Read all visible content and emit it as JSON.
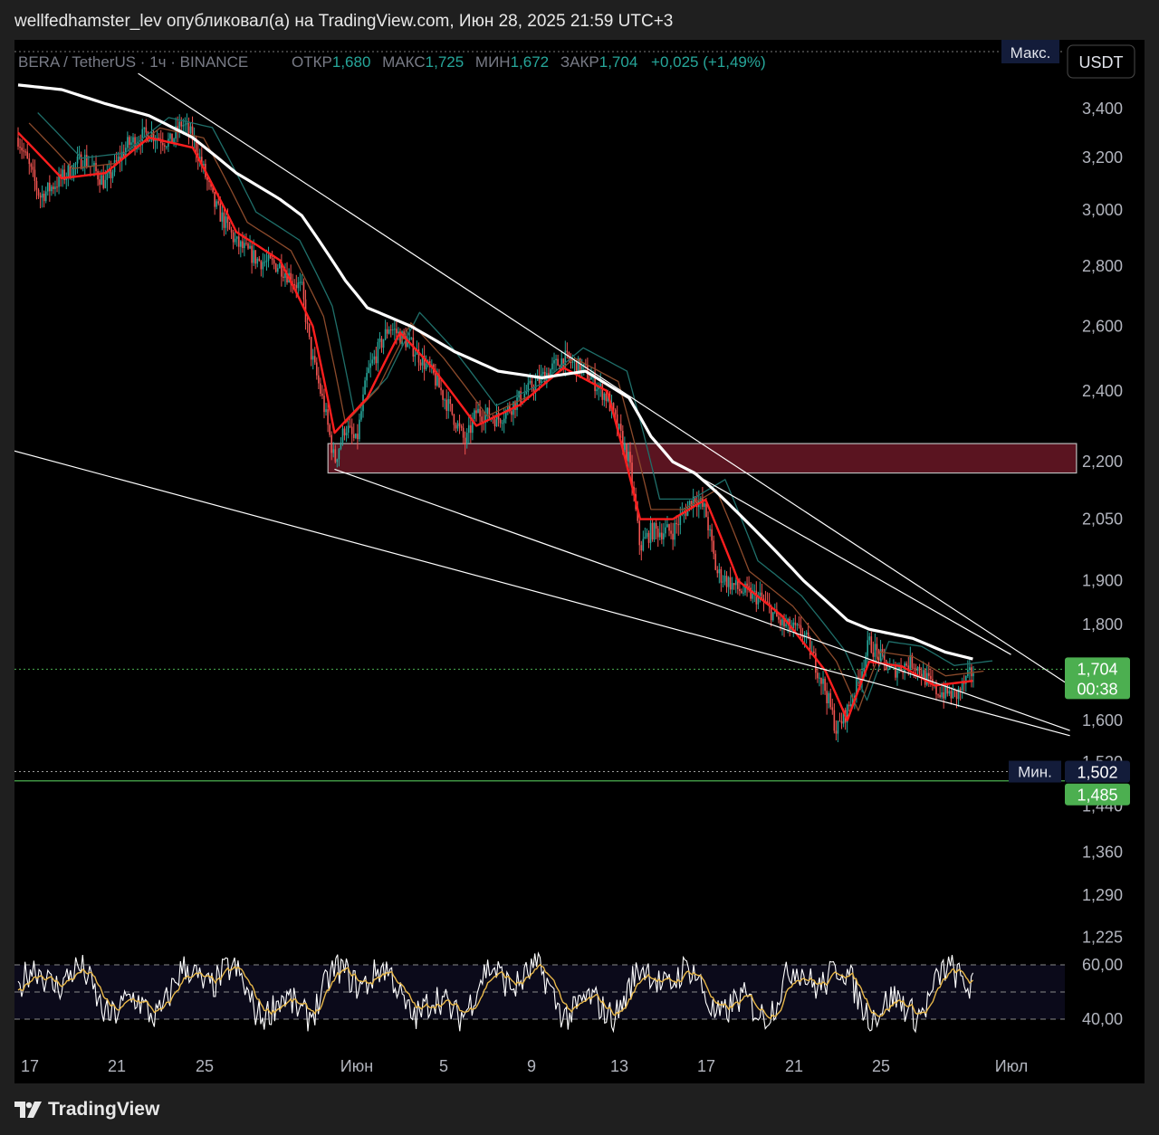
{
  "header": {
    "publish_line": "wellfedhamster_lev опубликовал(а) на TradingView.com, Июн 28, 2025 21:59 UTC+3"
  },
  "legend": {
    "symbol": "BERA / TetherUS · 1ч · BINANCE",
    "open_label": "ОТКР",
    "open_value": "1,680",
    "high_label": "МАКС",
    "high_value": "1,725",
    "low_label": "МИН",
    "low_value": "1,672",
    "close_label": "ЗАКР",
    "close_value": "1,704",
    "change": "+0,025 (+1,49%)"
  },
  "currency_button": "USDT",
  "max_label": "Макс.",
  "min_label": "Мин.",
  "min_value": "1,502",
  "current_price": "1,704",
  "countdown": "00:38",
  "green_line_price": "1,485",
  "footer": {
    "brand": "TradingView"
  },
  "colors": {
    "up": "#26a69a",
    "down": "#ef5350",
    "ema_fast": "#ff1e1e",
    "ema_mid": "#8b4a2b",
    "ema_slow": "#1f6f6a",
    "ema_long": "#ffffff",
    "zone": "#5a1420",
    "rsi": "#ffffff",
    "rsi_ma": "#e8b84a",
    "price_badge": "#4caf50",
    "dark_badge": "#131c3a"
  },
  "chart_data": {
    "type": "line",
    "price_scale": "log",
    "price_range": [
      1.22,
      3.48
    ],
    "y_ticks": [
      "3,400",
      "3,200",
      "3,000",
      "2,800",
      "2,600",
      "2,400",
      "2,200",
      "2,050",
      "1,900",
      "1,800",
      "1,600",
      "1,520",
      "1,440",
      "1,360",
      "1,290",
      "1,225"
    ],
    "x_ticks": [
      "17",
      "21",
      "25",
      "Июн",
      "5",
      "9",
      "13",
      "17",
      "21",
      "25",
      "Июл"
    ],
    "price_path": [
      [
        0,
        3.28
      ],
      [
        1,
        3.05
      ],
      [
        2,
        3.12
      ],
      [
        3,
        3.2
      ],
      [
        4,
        3.1
      ],
      [
        5,
        3.25
      ],
      [
        6,
        3.3
      ],
      [
        7,
        3.26
      ],
      [
        7.5,
        3.34
      ],
      [
        8,
        3.28
      ],
      [
        9,
        3.02
      ],
      [
        10,
        2.88
      ],
      [
        11,
        2.82
      ],
      [
        12,
        2.8
      ],
      [
        13,
        2.72
      ],
      [
        13.4,
        2.52
      ],
      [
        14,
        2.36
      ],
      [
        14.5,
        2.2
      ],
      [
        15,
        2.3
      ],
      [
        15.5,
        2.25
      ],
      [
        16,
        2.45
      ],
      [
        17,
        2.6
      ],
      [
        18,
        2.54
      ],
      [
        19,
        2.45
      ],
      [
        20,
        2.32
      ],
      [
        20.5,
        2.25
      ],
      [
        21,
        2.34
      ],
      [
        22,
        2.32
      ],
      [
        23,
        2.38
      ],
      [
        24,
        2.44
      ],
      [
        25,
        2.5
      ],
      [
        26,
        2.46
      ],
      [
        27,
        2.38
      ],
      [
        28,
        2.2
      ],
      [
        28.5,
        1.98
      ],
      [
        29,
        2.02
      ],
      [
        30,
        2.02
      ],
      [
        31,
        2.11
      ],
      [
        31.5,
        2.07
      ],
      [
        32,
        1.92
      ],
      [
        33,
        1.88
      ],
      [
        34,
        1.86
      ],
      [
        35,
        1.8
      ],
      [
        36,
        1.78
      ],
      [
        37,
        1.66
      ],
      [
        37.5,
        1.58
      ],
      [
        38,
        1.62
      ],
      [
        38.5,
        1.68
      ],
      [
        39,
        1.76
      ],
      [
        40,
        1.7
      ],
      [
        41,
        1.72
      ],
      [
        42,
        1.66
      ],
      [
        43,
        1.65
      ],
      [
        43.8,
        1.704
      ]
    ],
    "ema_fast": [
      [
        0,
        3.3
      ],
      [
        2,
        3.12
      ],
      [
        4,
        3.14
      ],
      [
        6,
        3.28
      ],
      [
        8,
        3.24
      ],
      [
        10,
        2.92
      ],
      [
        12,
        2.82
      ],
      [
        13.5,
        2.6
      ],
      [
        14.5,
        2.28
      ],
      [
        16,
        2.38
      ],
      [
        17.5,
        2.58
      ],
      [
        19,
        2.47
      ],
      [
        21,
        2.3
      ],
      [
        23,
        2.36
      ],
      [
        25,
        2.47
      ],
      [
        27,
        2.4
      ],
      [
        28.5,
        2.05
      ],
      [
        30,
        2.05
      ],
      [
        31.5,
        2.1
      ],
      [
        33,
        1.9
      ],
      [
        35,
        1.82
      ],
      [
        37,
        1.7
      ],
      [
        38,
        1.6
      ],
      [
        39,
        1.72
      ],
      [
        40.5,
        1.71
      ],
      [
        42,
        1.67
      ],
      [
        43.8,
        1.68
      ]
    ],
    "ema_long": [
      [
        0,
        3.5
      ],
      [
        2,
        3.48
      ],
      [
        4,
        3.42
      ],
      [
        6,
        3.37
      ],
      [
        8,
        3.28
      ],
      [
        10,
        3.14
      ],
      [
        12,
        3.04
      ],
      [
        13,
        2.98
      ],
      [
        15,
        2.75
      ],
      [
        16,
        2.66
      ],
      [
        18,
        2.6
      ],
      [
        20,
        2.52
      ],
      [
        22,
        2.46
      ],
      [
        24,
        2.44
      ],
      [
        26,
        2.46
      ],
      [
        28,
        2.38
      ],
      [
        29,
        2.27
      ],
      [
        30,
        2.2
      ],
      [
        31,
        2.17
      ],
      [
        32,
        2.12
      ],
      [
        34,
        2.01
      ],
      [
        36,
        1.9
      ],
      [
        38,
        1.81
      ],
      [
        39,
        1.79
      ],
      [
        41,
        1.77
      ],
      [
        42.5,
        1.74
      ],
      [
        43.8,
        1.725
      ]
    ],
    "channel_lines": [
      {
        "from": [
          -0.8,
          2.24
        ],
        "to": [
          48.2,
          1.57
        ]
      },
      {
        "from": [
          14.5,
          2.18
        ],
        "to": [
          48.2,
          1.58
        ]
      },
      {
        "from": [
          5.5,
          3.55
        ],
        "to": [
          48.2,
          1.67
        ]
      },
      {
        "from": [
          30,
          2.2
        ],
        "to": [
          45.5,
          1.735
        ]
      }
    ],
    "resistance_zone": {
      "from_x": 14.2,
      "to_x": 48.5,
      "low": 2.17,
      "high": 2.25
    },
    "rsi_panel": {
      "ticks": [
        "60,00",
        "40,00"
      ],
      "levels": [
        60,
        50,
        40
      ]
    }
  }
}
